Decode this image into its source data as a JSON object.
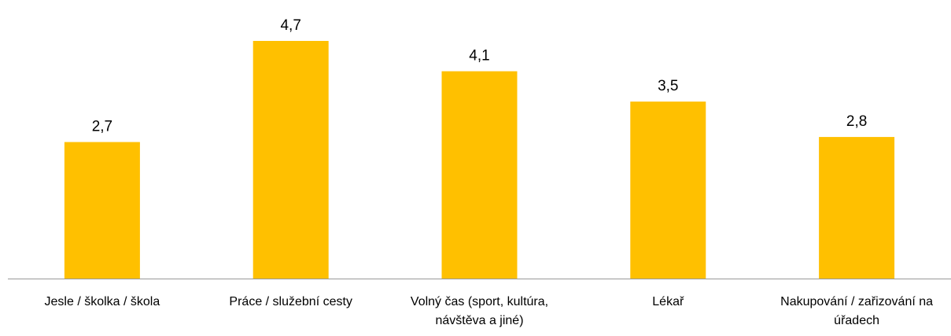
{
  "chart_data": {
    "type": "bar",
    "categories": [
      "Jesle / školka / škola",
      "Práce / služební cesty",
      "Volný čas (sport, kultúra, návštěva a jiné)",
      "Lékař",
      "Nakupování / zařizování na úřadech"
    ],
    "values": [
      2.7,
      4.7,
      4.1,
      3.5,
      2.8
    ],
    "value_labels": [
      "2,7",
      "4,7",
      "4,1",
      "3,5",
      "2,8"
    ],
    "color": "#ffc000"
  }
}
